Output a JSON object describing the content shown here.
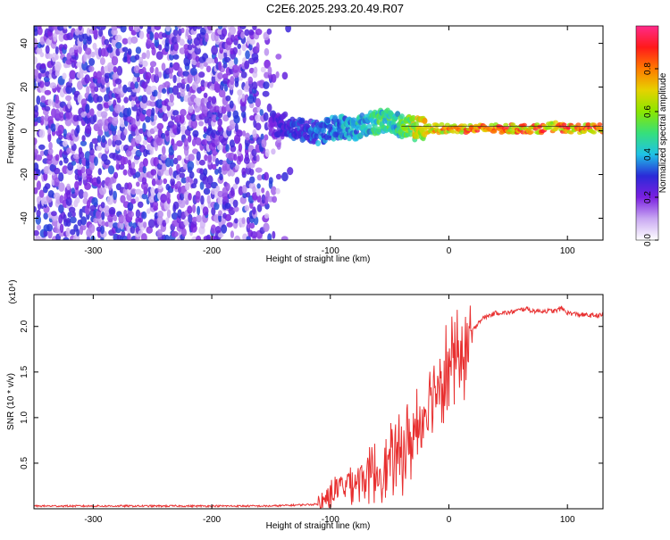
{
  "figure": {
    "title": "C2E6.2025.293.20.49.R07"
  },
  "chart_data": [
    {
      "type": "heatmap",
      "xlabel": "Height of straight line (km)",
      "ylabel": "Frequency (Hz)",
      "xlim": [
        -350,
        130
      ],
      "ylim": [
        -50,
        48
      ],
      "xticks": [
        -300,
        -200,
        -100,
        0,
        100
      ],
      "yticks": [
        -40,
        -20,
        0,
        20,
        40
      ],
      "colorbar": {
        "label": "Normalized spectral amplitude",
        "range": [
          0,
          1
        ],
        "ticks": [
          "0.0",
          "0.2",
          "0.4",
          "0.6",
          "0.8"
        ],
        "colors": [
          "#ffffff",
          "#c9a8f2",
          "#7a1fe0",
          "#2a2ad8",
          "#1fc2e6",
          "#36e07a",
          "#8ae600",
          "#e6d200",
          "#ff7a00",
          "#ff1a1a",
          "#ff2a8a"
        ]
      },
      "noise_region": {
        "x_from": -350,
        "x_to": -135,
        "freq_range": [
          -50,
          48
        ],
        "amplitude": 0.15
      },
      "signal_trace": {
        "x": [
          -150,
          -140,
          -130,
          -120,
          -110,
          -100,
          -90,
          -80,
          -70,
          -60,
          -50,
          -45,
          -40,
          -30,
          -20,
          -10,
          0,
          20,
          40,
          60,
          80,
          90,
          100,
          120,
          130
        ],
        "frequency": [
          2,
          3,
          1,
          0,
          -1,
          1,
          2,
          1,
          3,
          4,
          5,
          4,
          2,
          1,
          1,
          1,
          1,
          1,
          1,
          1,
          1,
          2,
          1,
          1,
          1
        ],
        "amplitude": [
          0.25,
          0.3,
          0.35,
          0.35,
          0.4,
          0.4,
          0.45,
          0.45,
          0.5,
          0.55,
          0.55,
          0.5,
          0.6,
          0.7,
          0.8,
          0.85,
          0.85,
          0.9,
          0.9,
          0.9,
          0.9,
          0.85,
          0.9,
          0.9,
          0.9
        ]
      },
      "grid": false
    },
    {
      "type": "line",
      "xlabel": "Height of straight line (km)",
      "ylabel": "SNR (10 * v/v)",
      "y_multiplier": "(x10⁴)",
      "xlim": [
        -350,
        130
      ],
      "ylim": [
        0,
        2.35
      ],
      "xticks": [
        -300,
        -200,
        -100,
        0,
        100
      ],
      "yticks": [
        0.5,
        1.0,
        1.5,
        2.0
      ],
      "color": "#e83030",
      "series": [
        {
          "x": [
            -350,
            -300,
            -250,
            -200,
            -150,
            -110,
            -105,
            -100,
            -95,
            -90,
            -85,
            -80,
            -75,
            -70,
            -65,
            -60,
            -55,
            -50,
            -45,
            -40,
            -35,
            -30,
            -25,
            -20,
            -15,
            -10,
            -5,
            0,
            5,
            10,
            15,
            20,
            25,
            30,
            40,
            50,
            60,
            65,
            70,
            80,
            90,
            95,
            100,
            110,
            120,
            130
          ],
          "y": [
            0.03,
            0.03,
            0.03,
            0.03,
            0.03,
            0.05,
            0.1,
            0.15,
            0.2,
            0.25,
            0.3,
            0.3,
            0.35,
            0.35,
            0.4,
            0.4,
            0.45,
            0.5,
            0.55,
            0.6,
            0.7,
            0.8,
            0.95,
            1.1,
            1.3,
            1.4,
            1.5,
            1.55,
            1.6,
            1.65,
            1.8,
            1.95,
            2.05,
            2.1,
            2.15,
            2.15,
            2.18,
            2.2,
            2.17,
            2.17,
            2.17,
            2.2,
            2.15,
            2.13,
            2.12,
            2.12
          ]
        }
      ],
      "grid": false
    }
  ]
}
